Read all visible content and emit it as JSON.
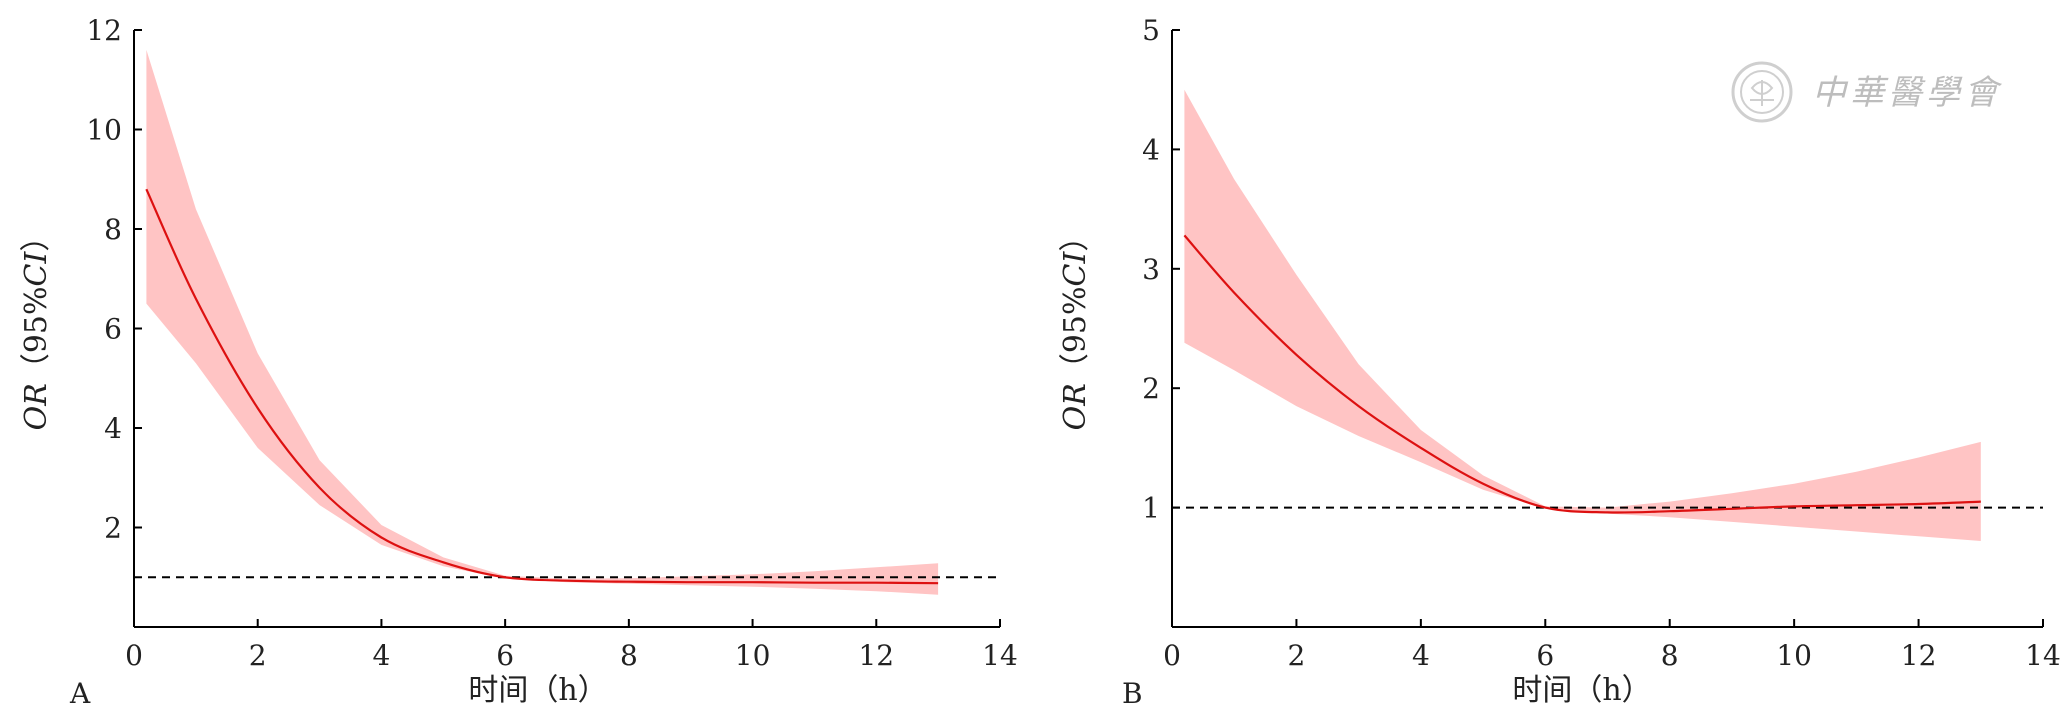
{
  "watermark": {
    "text": "中華醫學會"
  },
  "chart_data": [
    {
      "panel": "A",
      "type": "line",
      "xlabel": "时间（h）",
      "ylabel": "OR（95%CI）",
      "ylabel_italic": "OR",
      "ylabel_ci_prefix": "（95%",
      "ylabel_ci_italic": "CI",
      "ylabel_ci_suffix": "）",
      "xlim": [
        0,
        14
      ],
      "ylim": [
        0,
        12
      ],
      "xticks": [
        0,
        2,
        4,
        6,
        8,
        10,
        12,
        14
      ],
      "yticks": [
        2,
        4,
        6,
        8,
        10,
        12
      ],
      "reference_line": 1,
      "grid": false,
      "colors": {
        "line": "#dd1111",
        "band": "#ffc4c4",
        "ref": "#000000"
      },
      "x": [
        0.2,
        1,
        2,
        3,
        4,
        5,
        6,
        7,
        8,
        9,
        10,
        11,
        12,
        13
      ],
      "or": [
        8.8,
        6.6,
        4.4,
        2.8,
        1.8,
        1.3,
        1.0,
        0.93,
        0.91,
        0.9,
        0.9,
        0.89,
        0.89,
        0.88
      ],
      "lower": [
        6.5,
        5.3,
        3.6,
        2.45,
        1.65,
        1.22,
        0.97,
        0.9,
        0.87,
        0.84,
        0.81,
        0.77,
        0.72,
        0.65
      ],
      "upper": [
        11.6,
        8.4,
        5.5,
        3.35,
        2.05,
        1.4,
        1.03,
        0.97,
        0.98,
        1.02,
        1.06,
        1.12,
        1.2,
        1.28
      ]
    },
    {
      "panel": "B",
      "type": "line",
      "xlabel": "时间（h）",
      "ylabel": "OR（95%CI）",
      "ylabel_italic": "OR",
      "ylabel_ci_prefix": "（95%",
      "ylabel_ci_italic": "CI",
      "ylabel_ci_suffix": "）",
      "xlim": [
        0,
        14
      ],
      "ylim": [
        0,
        5
      ],
      "xticks": [
        0,
        2,
        4,
        6,
        8,
        10,
        12,
        14
      ],
      "yticks": [
        1,
        2,
        3,
        4,
        5
      ],
      "reference_line": 1,
      "grid": false,
      "colors": {
        "line": "#dd1111",
        "band": "#ffc4c4",
        "ref": "#000000"
      },
      "x": [
        0.2,
        1,
        2,
        3,
        4,
        5,
        6,
        7,
        8,
        9,
        10,
        11,
        12,
        13
      ],
      "or": [
        3.28,
        2.8,
        2.28,
        1.85,
        1.5,
        1.2,
        1.0,
        0.96,
        0.97,
        0.99,
        1.01,
        1.02,
        1.03,
        1.05
      ],
      "lower": [
        2.38,
        2.15,
        1.85,
        1.6,
        1.38,
        1.15,
        0.99,
        0.95,
        0.92,
        0.88,
        0.84,
        0.8,
        0.76,
        0.72
      ],
      "upper": [
        4.5,
        3.75,
        2.95,
        2.2,
        1.65,
        1.27,
        1.01,
        1.0,
        1.05,
        1.12,
        1.2,
        1.3,
        1.42,
        1.55
      ]
    }
  ]
}
